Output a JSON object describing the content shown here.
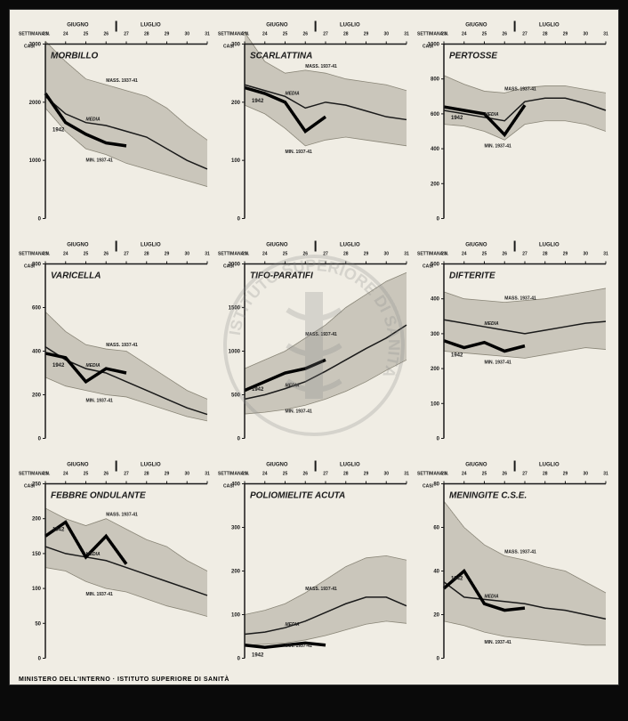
{
  "page": {
    "footer_text": "MINISTERO DELL'INTERNO · ISTITUTO SUPERIORE DI SANITÀ",
    "month_left": "GIUGNO",
    "month_right": "LUGLIO",
    "week_label": "SETTIMANA N.",
    "yaxis_label": "CASI",
    "weeks": [
      23,
      24,
      25,
      26,
      27,
      28,
      29,
      30,
      31
    ],
    "band_label_max": "MASS. 1937-41",
    "band_label_min": "MIN. 1937-41",
    "media_label": "MEDIA",
    "year_label": "1942",
    "colors": {
      "background": "#f0ede4",
      "axis": "#1a1a1a",
      "band_fill": "#b8b4a8",
      "band_hatch": "#8a8678",
      "media_line": "#1a1a1a",
      "year_line": "#000000",
      "text": "#1a1a1a"
    }
  },
  "charts": [
    {
      "title": "MORBILLO",
      "ymax": 3000,
      "ytick_step": 1000,
      "yticks": [
        0,
        1000,
        2000,
        3000
      ],
      "band_max": [
        3050,
        2700,
        2400,
        2300,
        2200,
        2100,
        1900,
        1600,
        1350
      ],
      "band_min": [
        1900,
        1500,
        1200,
        1100,
        950,
        850,
        750,
        650,
        550
      ],
      "media": [
        2100,
        1800,
        1650,
        1600,
        1500,
        1400,
        1200,
        1000,
        850
      ],
      "year1942": [
        2150,
        1650,
        1450,
        1300,
        1250
      ]
    },
    {
      "title": "SCARLATTINA",
      "ymax": 300,
      "ytick_step": 100,
      "yticks": [
        0,
        100,
        200,
        300
      ],
      "band_max": [
        320,
        270,
        250,
        255,
        250,
        240,
        235,
        230,
        220
      ],
      "band_min": [
        195,
        180,
        155,
        125,
        135,
        140,
        135,
        130,
        125
      ],
      "media": [
        230,
        220,
        210,
        190,
        200,
        195,
        185,
        175,
        170
      ],
      "year1942": [
        225,
        215,
        200,
        150,
        175
      ]
    },
    {
      "title": "PERTOSSE",
      "ymax": 1000,
      "ytick_step": 200,
      "yticks": [
        0,
        200,
        400,
        600,
        800,
        1000
      ],
      "band_max": [
        820,
        770,
        730,
        720,
        750,
        760,
        760,
        740,
        720
      ],
      "band_min": [
        540,
        530,
        500,
        450,
        540,
        560,
        560,
        540,
        500
      ],
      "media": [
        620,
        600,
        580,
        560,
        670,
        690,
        690,
        660,
        620
      ],
      "year1942": [
        640,
        620,
        600,
        480,
        650
      ]
    },
    {
      "title": "VARICELLA",
      "ymax": 800,
      "ytick_step": 200,
      "yticks": [
        0,
        200,
        400,
        600,
        800
      ],
      "band_max": [
        580,
        490,
        430,
        410,
        400,
        340,
        280,
        220,
        180
      ],
      "band_min": [
        280,
        240,
        220,
        200,
        190,
        160,
        130,
        100,
        80
      ],
      "media": [
        420,
        360,
        320,
        300,
        260,
        220,
        180,
        140,
        110
      ],
      "year1942": [
        390,
        370,
        260,
        320,
        300
      ]
    },
    {
      "title": "TIFO-PARATIFI",
      "ymax": 2000,
      "ytick_step": 500,
      "yticks": [
        0,
        500,
        1000,
        1500,
        2000
      ],
      "band_max": [
        800,
        900,
        1000,
        1150,
        1300,
        1500,
        1650,
        1800,
        1900
      ],
      "band_min": [
        280,
        300,
        330,
        380,
        450,
        540,
        650,
        780,
        900
      ],
      "media": [
        450,
        500,
        570,
        650,
        770,
        900,
        1030,
        1150,
        1300
      ],
      "year1942": [
        550,
        650,
        750,
        800,
        900
      ]
    },
    {
      "title": "DIFTERITE",
      "ymax": 500,
      "ytick_step": 100,
      "yticks": [
        0,
        100,
        200,
        300,
        400,
        500
      ],
      "band_max": [
        420,
        400,
        395,
        390,
        395,
        400,
        410,
        420,
        430
      ],
      "band_min": [
        250,
        245,
        240,
        235,
        230,
        240,
        250,
        260,
        255
      ],
      "media": [
        340,
        330,
        320,
        310,
        300,
        310,
        320,
        330,
        335
      ],
      "year1942": [
        280,
        260,
        275,
        250,
        265
      ]
    },
    {
      "title": "FEBBRE ONDULANTE",
      "ymax": 250,
      "ytick_step": 50,
      "yticks": [
        0,
        50,
        100,
        150,
        200,
        250
      ],
      "band_max": [
        215,
        200,
        190,
        200,
        185,
        170,
        160,
        140,
        125
      ],
      "band_min": [
        130,
        125,
        110,
        100,
        95,
        85,
        75,
        68,
        60
      ],
      "media": [
        160,
        150,
        145,
        140,
        130,
        120,
        110,
        100,
        90
      ],
      "year1942": [
        175,
        195,
        145,
        175,
        135
      ]
    },
    {
      "title": "POLIOMIELITE ACUTA",
      "ymax": 400,
      "ytick_step": 100,
      "yticks": [
        0,
        100,
        200,
        300,
        400
      ],
      "band_max": [
        100,
        110,
        125,
        150,
        180,
        210,
        230,
        235,
        225
      ],
      "band_min": [
        30,
        32,
        35,
        42,
        52,
        65,
        78,
        85,
        80
      ],
      "media": [
        55,
        60,
        70,
        85,
        105,
        125,
        140,
        140,
        120
      ],
      "year1942": [
        30,
        25,
        30,
        35,
        30
      ]
    },
    {
      "title": "MENINGITE C.S.E.",
      "ymax": 80,
      "ytick_step": 20,
      "yticks": [
        0,
        20,
        40,
        60,
        80
      ],
      "band_max": [
        72,
        60,
        52,
        47,
        45,
        42,
        40,
        35,
        30
      ],
      "band_min": [
        17,
        15,
        12,
        10,
        9,
        8,
        7,
        6,
        6
      ],
      "media": [
        35,
        28,
        27,
        26,
        25,
        23,
        22,
        20,
        18
      ],
      "year1942": [
        32,
        40,
        25,
        22,
        23
      ]
    }
  ]
}
